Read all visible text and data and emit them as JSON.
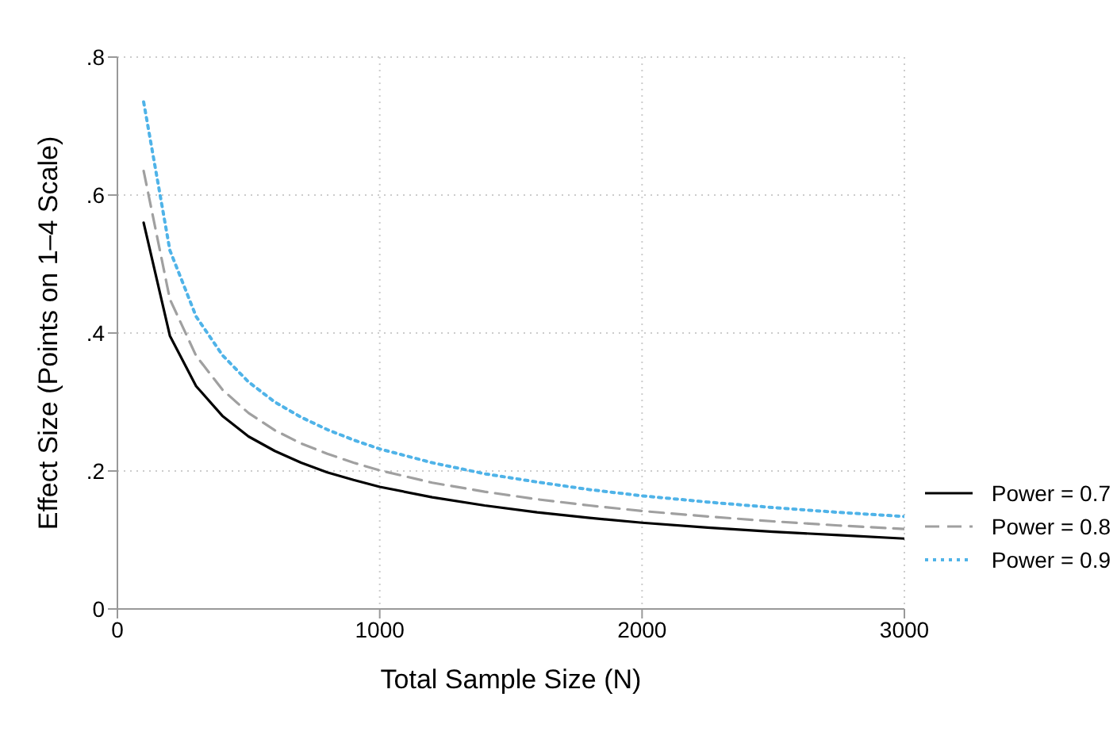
{
  "chart_data": {
    "type": "line",
    "xlabel": "Total Sample Size (N)",
    "ylabel": "Effect Size (Points on 1–4 Scale)",
    "x": [
      100,
      200,
      300,
      400,
      500,
      600,
      700,
      800,
      900,
      1000,
      1200,
      1400,
      1600,
      1800,
      2000,
      2250,
      2500,
      2750,
      3000
    ],
    "series": [
      {
        "name": "Power = 0.7",
        "color": "#000000",
        "line_style": "solid",
        "values": [
          0.56,
          0.396,
          0.323,
          0.28,
          0.25,
          0.229,
          0.212,
          0.198,
          0.187,
          0.177,
          0.162,
          0.15,
          0.14,
          0.132,
          0.125,
          0.118,
          0.112,
          0.107,
          0.102
        ]
      },
      {
        "name": "Power = 0.8",
        "color": "#a0a0a0",
        "line_style": "dashed",
        "values": [
          0.635,
          0.449,
          0.367,
          0.318,
          0.284,
          0.259,
          0.24,
          0.225,
          0.212,
          0.201,
          0.183,
          0.17,
          0.159,
          0.15,
          0.142,
          0.134,
          0.127,
          0.121,
          0.116
        ]
      },
      {
        "name": "Power = 0.9",
        "color": "#4fb3e8",
        "line_style": "dotted",
        "values": [
          0.735,
          0.52,
          0.424,
          0.368,
          0.329,
          0.3,
          0.278,
          0.26,
          0.245,
          0.232,
          0.212,
          0.196,
          0.184,
          0.173,
          0.164,
          0.155,
          0.147,
          0.14,
          0.134
        ]
      }
    ],
    "xlim": [
      0,
      3000
    ],
    "xticks": [
      0,
      1000,
      2000,
      3000
    ],
    "ylim": [
      0,
      0.8
    ],
    "yticks": [
      0,
      {
        "value": 0.2,
        "label": ".2"
      },
      {
        "value": 0.4,
        "label": ".4"
      },
      {
        "value": 0.6,
        "label": ".6"
      },
      {
        "value": 0.8,
        "label": ".8"
      }
    ],
    "grid": true,
    "legend": "bottom right",
    "marker": "none"
  }
}
